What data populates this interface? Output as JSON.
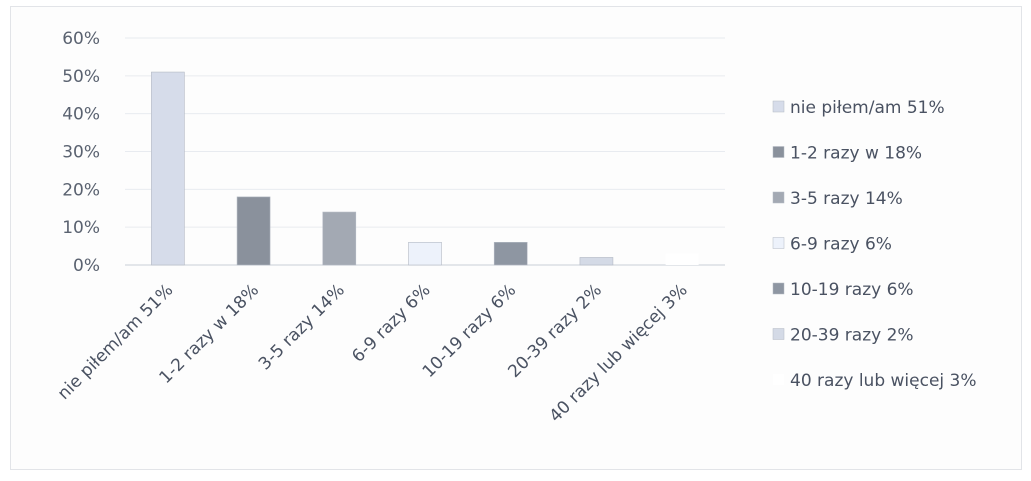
{
  "chart_data": {
    "type": "bar",
    "title": "",
    "xlabel": "",
    "ylabel": "",
    "ylim": [
      0,
      60
    ],
    "grid": true,
    "legend_position": "right",
    "y_ticks": [
      "0%",
      "10%",
      "20%",
      "30%",
      "40%",
      "50%",
      "60%"
    ],
    "categories": [
      "nie piłem/am 51%",
      "1-2 razy w 18%",
      "3-5 razy  14%",
      "6-9 razy 6%",
      "10-19 razy 6%",
      "20-39 razy 2%",
      "40 razy lub więcej 3%"
    ],
    "values": [
      51,
      18,
      14,
      6,
      6,
      2,
      3
    ],
    "colors": [
      "#d6dcea",
      "#8a919c",
      "#a3a9b3",
      "#edf2fb",
      "#8e96a2",
      "#d4dae6",
      "#ffffff"
    ],
    "legend": [
      "nie piłem/am 51%",
      "1-2 razy w 18%",
      "3-5 razy  14%",
      "6-9 razy 6%",
      "10-19 razy 6%",
      "20-39 razy 2%",
      "40 razy lub więcej 3%"
    ]
  }
}
